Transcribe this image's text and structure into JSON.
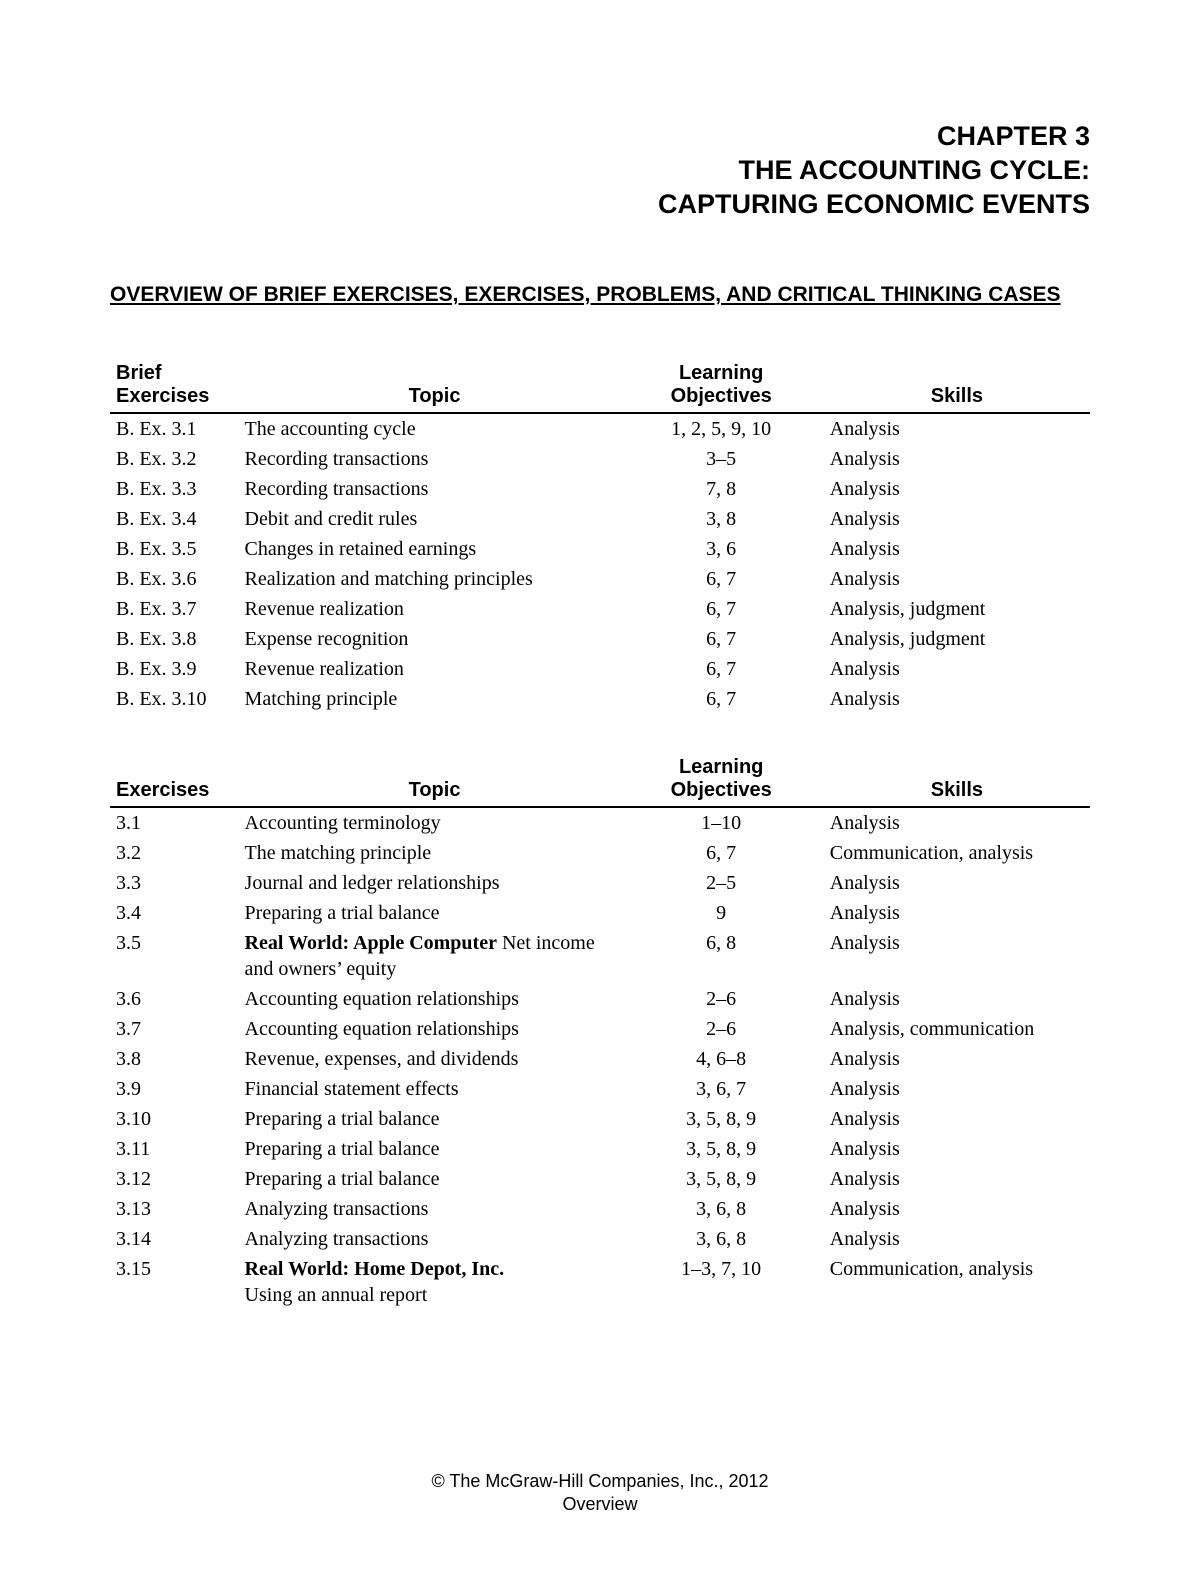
{
  "chapter": {
    "line1": "CHAPTER 3",
    "line2": "THE ACCOUNTING CYCLE:",
    "line3": "CAPTURING ECONOMIC EVENTS"
  },
  "overview_heading": "OVERVIEW OF BRIEF EXERCISES, EXERCISES, PROBLEMS, AND CRITICAL THINKING CASES",
  "table1": {
    "headers": {
      "col1_line1": "Brief",
      "col1_line2": "Exercises",
      "col2": "Topic",
      "col3_line1": "Learning",
      "col3_line2": "Objectives",
      "col4": "Skills"
    },
    "rows": [
      {
        "id": "B. Ex. 3.1",
        "topic": "The accounting cycle",
        "obj": "1, 2, 5, 9, 10",
        "skill": "Analysis"
      },
      {
        "id": "B. Ex. 3.2",
        "topic": "Recording transactions",
        "obj": "3–5",
        "skill": "Analysis"
      },
      {
        "id": "B. Ex. 3.3",
        "topic": "Recording transactions",
        "obj": "7, 8",
        "skill": "Analysis"
      },
      {
        "id": "B. Ex. 3.4",
        "topic": "Debit and credit rules",
        "obj": "3, 8",
        "skill": "Analysis"
      },
      {
        "id": "B. Ex. 3.5",
        "topic": "Changes in retained earnings",
        "obj": "3, 6",
        "skill": "Analysis"
      },
      {
        "id": "B. Ex. 3.6",
        "topic": "Realization and matching principles",
        "obj": "6, 7",
        "skill": "Analysis"
      },
      {
        "id": "B. Ex. 3.7",
        "topic": "Revenue realization",
        "obj": "6, 7",
        "skill": "Analysis, judgment"
      },
      {
        "id": "B. Ex. 3.8",
        "topic": "Expense recognition",
        "obj": "6, 7",
        "skill": "Analysis, judgment"
      },
      {
        "id": "B. Ex. 3.9",
        "topic": "Revenue realization",
        "obj": "6, 7",
        "skill": "Analysis"
      },
      {
        "id": "B. Ex. 3.10",
        "topic": "Matching principle",
        "obj": "6, 7",
        "skill": "Analysis"
      }
    ]
  },
  "table2": {
    "headers": {
      "col1": "Exercises",
      "col2": "Topic",
      "col3_line1": "Learning",
      "col3_line2": "Objectives",
      "col4": "Skills"
    },
    "rows": [
      {
        "id": "3.1",
        "topic": "Accounting terminology",
        "obj": "1–10",
        "skill": "Analysis"
      },
      {
        "id": "3.2",
        "topic": "The matching principle",
        "obj": "6, 7",
        "skill": "Communication, analysis"
      },
      {
        "id": "3.3",
        "topic": "Journal and ledger relationships",
        "obj": "2–5",
        "skill": "Analysis"
      },
      {
        "id": "3.4",
        "topic": "Preparing a trial balance",
        "obj": "9",
        "skill": "Analysis"
      },
      {
        "id": "3.5",
        "topic_bold": "Real World: Apple Computer",
        "topic_rest": "  Net income and owners’ equity",
        "obj": "6, 8",
        "skill": "Analysis"
      },
      {
        "id": "3.6",
        "topic": "Accounting equation relationships",
        "obj": "2–6",
        "skill": "Analysis"
      },
      {
        "id": "3.7",
        "topic": "Accounting equation relationships",
        "obj": "2–6",
        "skill": "Analysis, communication"
      },
      {
        "id": "3.8",
        "topic": "Revenue, expenses, and dividends",
        "obj": "4, 6–8",
        "skill": "Analysis"
      },
      {
        "id": "3.9",
        "topic": "Financial statement effects",
        "obj": "3, 6, 7",
        "skill": "Analysis"
      },
      {
        "id": "3.10",
        "topic": "Preparing a trial balance",
        "obj": "3, 5, 8, 9",
        "skill": "Analysis"
      },
      {
        "id": "3.11",
        "topic": "Preparing a trial balance",
        "obj": "3, 5, 8, 9",
        "skill": "Analysis"
      },
      {
        "id": "3.12",
        "topic": "Preparing a trial balance",
        "obj": "3, 5, 8, 9",
        "skill": "Analysis"
      },
      {
        "id": "3.13",
        "topic": "Analyzing transactions",
        "obj": "3, 6, 8",
        "skill": "Analysis"
      },
      {
        "id": "3.14",
        "topic": "Analyzing transactions",
        "obj": "3, 6, 8",
        "skill": "Analysis"
      },
      {
        "id": "3.15",
        "topic_bold": "Real World: Home Depot, Inc.",
        "topic_rest2": "Using an annual report",
        "obj": "1–3, 7, 10",
        "skill": "Communication, analysis"
      }
    ]
  },
  "footer": {
    "line1": "© The McGraw-Hill Companies, Inc., 2012",
    "line2": "Overview"
  }
}
